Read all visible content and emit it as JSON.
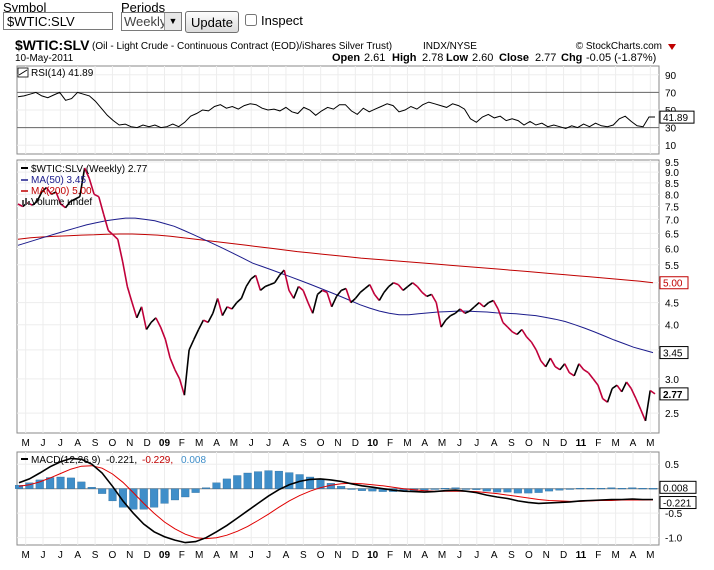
{
  "controls": {
    "symbol_label": "Symbol",
    "symbol_value": "$WTIC:SLV",
    "periods_label": "Periods",
    "periods_value": "Weekly",
    "update_label": "Update",
    "inspect_label": "Inspect"
  },
  "header": {
    "symbol": "$WTIC:SLV",
    "description": "(Oil - Light Crude - Continuous Contract (EOD)/iShares Silver Trust)",
    "exchange": "INDX/NYSE",
    "credit": "© StockCharts.com",
    "date": "10-May-2011",
    "ohlc": [
      {
        "label": "Open",
        "value": "2.61"
      },
      {
        "label": "High",
        "value": "2.78"
      },
      {
        "label": "Low",
        "value": "2.60"
      },
      {
        "label": "Close",
        "value": "2.77"
      },
      {
        "label": "Chg",
        "value": "-0.05 (-1.87%)"
      }
    ]
  },
  "chart_data": [
    {
      "panel": "rsi",
      "type": "line",
      "legend": "RSI(14) 41.89",
      "ylim": [
        0,
        100
      ],
      "yticks": [
        10,
        30,
        50,
        70,
        90
      ],
      "reference_lines": [
        30,
        70
      ],
      "last_value": "41.89",
      "colors": {
        "line": "#000000"
      },
      "series": [
        {
          "values": [
            65,
            66,
            68,
            70,
            66,
            64,
            67,
            70,
            61,
            63,
            70,
            68,
            66,
            60,
            52,
            44,
            38,
            33,
            34,
            31,
            30,
            33,
            31,
            33,
            30,
            31,
            34,
            31,
            36,
            43,
            46,
            50,
            49,
            54,
            56,
            52,
            54,
            51,
            55,
            57,
            56,
            52,
            50,
            51,
            49,
            53,
            48,
            46,
            53,
            50,
            44,
            49,
            53,
            51,
            56,
            56,
            49,
            45,
            52,
            48,
            51,
            54,
            57,
            55,
            48,
            50,
            54,
            51,
            56,
            59,
            57,
            55,
            53,
            57,
            55,
            51,
            40,
            36,
            42,
            45,
            41,
            43,
            38,
            40,
            38,
            33,
            37,
            33,
            35,
            31,
            33,
            31,
            29,
            32,
            30,
            34,
            31,
            35,
            32,
            31,
            33,
            40,
            43,
            37,
            32,
            31,
            42,
            42
          ]
        }
      ]
    },
    {
      "panel": "price",
      "type": "line",
      "legend": [
        {
          "text": "$WTIC:SLV (Weekly) 2.77",
          "color": "#000000"
        },
        {
          "text": "MA(50) 3.45",
          "color": "#1c1c8c"
        },
        {
          "text": "MA(200) 5.00",
          "color": "#c00000"
        },
        {
          "text": "Volume undef",
          "color": "#000000"
        }
      ],
      "yscale": "log",
      "ylim": [
        2.25,
        9.6
      ],
      "yticks": [
        "2.5",
        "3.0",
        "3.5",
        "4.0",
        "4.5",
        "5.0",
        "5.5",
        "6.0",
        "6.5",
        "7.0",
        "7.5",
        "8.0",
        "8.5",
        "9.0",
        "9.5"
      ],
      "last_labels": {
        "ma200": "5.00",
        "ma50": "3.45",
        "price": "2.77"
      },
      "x_labels": [
        "M",
        "J",
        "J",
        "A",
        "S",
        "O",
        "N",
        "D",
        "09",
        "F",
        "M",
        "A",
        "M",
        "J",
        "J",
        "A",
        "S",
        "O",
        "N",
        "D",
        "10",
        "F",
        "M",
        "A",
        "M",
        "J",
        "J",
        "A",
        "S",
        "O",
        "N",
        "D",
        "11",
        "F",
        "M",
        "A",
        "M"
      ],
      "colors": {
        "price_up": "#000000",
        "price_down": "#c0003a",
        "ma50": "#1c1c8c",
        "ma200": "#c00000"
      },
      "series": [
        {
          "name": "$WTIC:SLV",
          "values": [
            7.6,
            7.5,
            7.65,
            7.55,
            7.7,
            8.1,
            8.3,
            8.0,
            8.1,
            7.6,
            7.45,
            7.7,
            7.8,
            7.9,
            9.2,
            8.7,
            8.0,
            7.9,
            7.2,
            6.6,
            6.45,
            6.3,
            5.6,
            4.9,
            4.5,
            4.15,
            4.4,
            3.9,
            4.05,
            4.15,
            3.95,
            3.7,
            3.35,
            3.15,
            3.0,
            2.75,
            3.5,
            3.7,
            3.9,
            4.1,
            4.05,
            4.25,
            4.6,
            4.2,
            4.4,
            4.35,
            4.5,
            4.6,
            4.9,
            5.1,
            5.2,
            4.8,
            4.9,
            4.95,
            5.0,
            5.2,
            5.35,
            4.8,
            4.6,
            4.9,
            4.8,
            4.5,
            4.25,
            4.7,
            4.8,
            4.75,
            4.4,
            4.65,
            4.8,
            4.85,
            4.5,
            4.6,
            4.75,
            4.85,
            4.95,
            4.7,
            4.55,
            4.75,
            4.9,
            5.0,
            4.95,
            4.8,
            4.9,
            5.0,
            4.9,
            4.75,
            4.65,
            4.7,
            4.5,
            3.95,
            4.1,
            4.2,
            4.25,
            4.35,
            4.25,
            4.3,
            4.4,
            4.5,
            4.4,
            4.5,
            4.55,
            4.35,
            4.05,
            3.95,
            3.85,
            3.8,
            3.9,
            3.75,
            3.65,
            3.5,
            3.3,
            3.2,
            3.35,
            3.2,
            3.15,
            3.25,
            3.1,
            3.05,
            3.25,
            3.15,
            3.1,
            3.0,
            2.9,
            2.7,
            2.65,
            2.85,
            2.9,
            2.8,
            2.95,
            2.85,
            2.7,
            2.55,
            2.4,
            2.82,
            2.77
          ]
        },
        {
          "name": "MA(50)",
          "values": [
            6.1,
            6.2,
            6.3,
            6.4,
            6.5,
            6.6,
            6.7,
            6.8,
            6.88,
            6.95,
            7.0,
            7.05,
            7.05,
            7.0,
            6.95,
            6.85,
            6.75,
            6.6,
            6.45,
            6.3,
            6.15,
            6.0,
            5.85,
            5.7,
            5.55,
            5.45,
            5.35,
            5.25,
            5.15,
            5.05,
            4.95,
            4.85,
            4.75,
            4.65,
            4.55,
            4.45,
            4.37,
            4.3,
            4.25,
            4.22,
            4.22,
            4.24,
            4.26,
            4.28,
            4.29,
            4.3,
            4.3,
            4.29,
            4.28,
            4.26,
            4.25,
            4.24,
            4.22,
            4.2,
            4.16,
            4.12,
            4.07,
            4.0,
            3.93,
            3.85,
            3.77,
            3.69,
            3.62,
            3.55,
            3.5,
            3.45
          ]
        },
        {
          "name": "MA(200)",
          "values": [
            6.3,
            6.35,
            6.38,
            6.4,
            6.42,
            6.44,
            6.45,
            6.47,
            6.48,
            6.48,
            6.46,
            6.44,
            6.4,
            6.35,
            6.3,
            6.25,
            6.2,
            6.15,
            6.1,
            6.05,
            6.0,
            5.95,
            5.9,
            5.86,
            5.82,
            5.78,
            5.74,
            5.7,
            5.67,
            5.64,
            5.61,
            5.58,
            5.55,
            5.52,
            5.49,
            5.46,
            5.43,
            5.4,
            5.37,
            5.34,
            5.31,
            5.28,
            5.25,
            5.22,
            5.19,
            5.16,
            5.13,
            5.1,
            5.07,
            5.04,
            5.0
          ]
        }
      ]
    },
    {
      "panel": "macd",
      "type": "line",
      "legend": [
        {
          "text": "MACD(12,26,9)",
          "color": "#000000"
        },
        {
          "text": "-0.221,",
          "color": "#000000"
        },
        {
          "text": "-0.229,",
          "color": "#c00000"
        },
        {
          "text": "0.008",
          "color": "#3f8ec9"
        }
      ],
      "ylim": [
        -1.15,
        0.75
      ],
      "yticks": [
        "0.5",
        "0.0",
        "-0.5",
        "-1.0"
      ],
      "last_labels": {
        "histogram": "0.008",
        "macd": "-0.221"
      },
      "x_labels": [
        "M",
        "J",
        "J",
        "A",
        "S",
        "O",
        "N",
        "D",
        "09",
        "F",
        "M",
        "A",
        "M",
        "J",
        "J",
        "A",
        "S",
        "O",
        "N",
        "D",
        "10",
        "F",
        "M",
        "A",
        "M",
        "J",
        "J",
        "A",
        "S",
        "O",
        "N",
        "D",
        "11",
        "F",
        "M",
        "A",
        "M"
      ],
      "colors": {
        "macd": "#000000",
        "signal": "#e00000",
        "histogram": "#3f8ec9"
      },
      "series": [
        {
          "name": "MACD",
          "values": [
            0.12,
            0.2,
            0.32,
            0.45,
            0.55,
            0.62,
            0.6,
            0.5,
            0.32,
            0.05,
            -0.25,
            -0.5,
            -0.72,
            -0.88,
            -0.98,
            -1.05,
            -1.1,
            -1.08,
            -1.0,
            -0.88,
            -0.75,
            -0.6,
            -0.45,
            -0.3,
            -0.15,
            -0.02,
            0.08,
            0.15,
            0.19,
            0.2,
            0.18,
            0.15,
            0.1,
            0.06,
            0.03,
            0.0,
            -0.03,
            -0.05,
            -0.06,
            -0.07,
            -0.06,
            -0.04,
            -0.03,
            -0.05,
            -0.08,
            -0.13,
            -0.17,
            -0.2,
            -0.25,
            -0.28,
            -0.3,
            -0.29,
            -0.28,
            -0.27,
            -0.25,
            -0.24,
            -0.23,
            -0.22,
            -0.22,
            -0.21,
            -0.22,
            -0.22
          ]
        },
        {
          "name": "Signal",
          "values": [
            0.05,
            0.08,
            0.14,
            0.22,
            0.31,
            0.4,
            0.46,
            0.47,
            0.42,
            0.3,
            0.13,
            -0.08,
            -0.3,
            -0.5,
            -0.68,
            -0.82,
            -0.93,
            -1.0,
            -1.02,
            -1.0,
            -0.95,
            -0.87,
            -0.77,
            -0.65,
            -0.52,
            -0.38,
            -0.25,
            -0.14,
            -0.05,
            0.02,
            0.07,
            0.1,
            0.11,
            0.1,
            0.08,
            0.06,
            0.03,
            0.0,
            -0.02,
            -0.04,
            -0.05,
            -0.05,
            -0.05,
            -0.05,
            -0.06,
            -0.08,
            -0.1,
            -0.13,
            -0.16,
            -0.19,
            -0.22,
            -0.24,
            -0.25,
            -0.26,
            -0.26,
            -0.25,
            -0.24,
            -0.24,
            -0.23,
            -0.23,
            -0.23,
            -0.229
          ]
        }
      ]
    }
  ]
}
